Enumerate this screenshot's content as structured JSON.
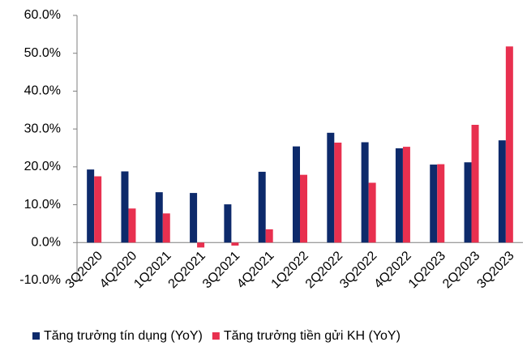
{
  "chart_data": {
    "type": "bar",
    "categories": [
      "3Q2020",
      "4Q2020",
      "1Q2021",
      "2Q2021",
      "3Q2021",
      "4Q2021",
      "1Q2022",
      "2Q2022",
      "3Q2022",
      "4Q2022",
      "1Q2023",
      "2Q2023",
      "3Q2023"
    ],
    "series": [
      {
        "name": "Tăng trưởng tín dụng (YoY)",
        "color": "#0d2a6b",
        "values": [
          19.3,
          18.8,
          13.3,
          13.1,
          10.1,
          18.7,
          25.4,
          29.0,
          26.5,
          24.9,
          20.6,
          21.2,
          27.0
        ]
      },
      {
        "name": "Tăng trưởng tiền gửi KH (YoY)",
        "color": "#e8304f",
        "values": [
          17.5,
          9.0,
          7.7,
          -1.3,
          -0.8,
          3.5,
          17.9,
          26.4,
          15.8,
          25.3,
          20.7,
          31.1,
          51.8
        ]
      }
    ],
    "ylim": [
      -10,
      60
    ],
    "yticks": [
      {
        "value": -10,
        "label": "-10.0%"
      },
      {
        "value": 0,
        "label": "0.0%"
      },
      {
        "value": 10,
        "label": "10.0%"
      },
      {
        "value": 20,
        "label": "20.0%"
      },
      {
        "value": 30,
        "label": "30.0%"
      },
      {
        "value": 40,
        "label": "40.0%"
      },
      {
        "value": 50,
        "label": "50.0%"
      },
      {
        "value": 60,
        "label": "60.0%"
      }
    ],
    "legend": "bottom",
    "grid": false
  }
}
